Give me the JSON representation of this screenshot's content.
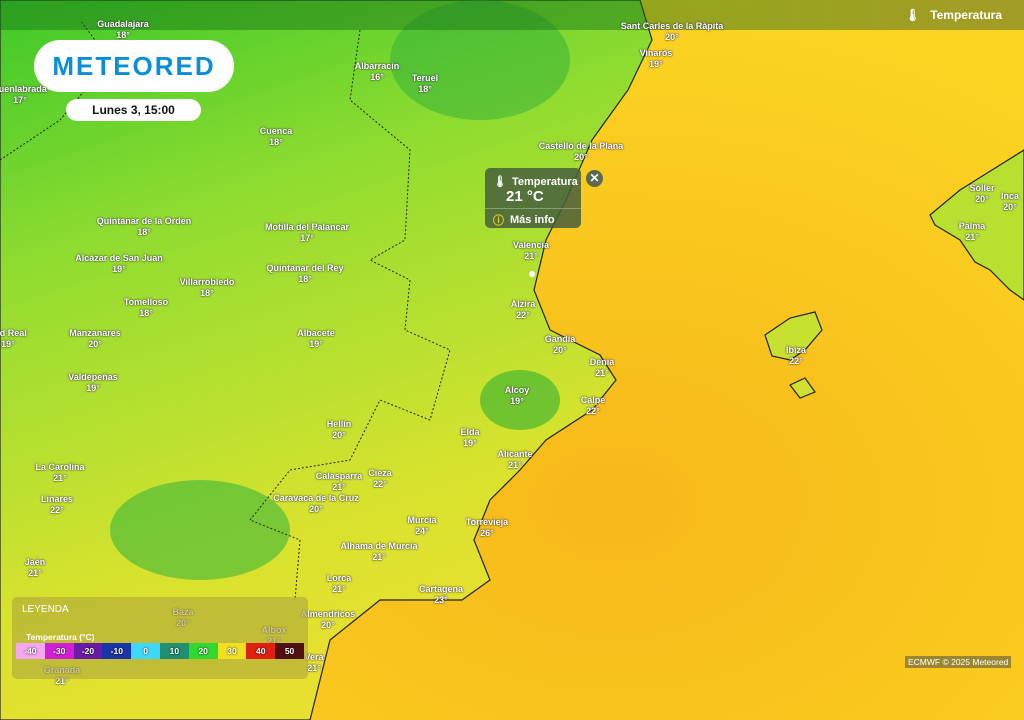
{
  "header": {
    "layer_label": "Temperatura",
    "layer_icon": "thermometer-icon"
  },
  "logo": {
    "text": "METEORED"
  },
  "date_label": "Lunes 3, 15:00",
  "popup": {
    "title": "Temperatura",
    "value": "21 °C",
    "more": "Más info",
    "close_icon": "close-icon",
    "info_icon": "info-icon"
  },
  "legend": {
    "title": "LEYENDA",
    "subtitle": "Temperatura (°C)",
    "ticks": [
      "-40",
      "-30",
      "-20",
      "-10",
      "0",
      "10",
      "20",
      "30",
      "40",
      "50"
    ],
    "colors": [
      "#f5a6f0",
      "#d11fd6",
      "#6a1ca8",
      "#1a35a8",
      "#40d8f8",
      "#209070",
      "#30d830",
      "#f0e020",
      "#e02010",
      "#501010"
    ]
  },
  "credit": "ECMWF © 2025 Meteored",
  "colors": {
    "sea": "#f6c21c",
    "land_green": "#4ccc2c",
    "land_yellow": "#d8e030",
    "brand": "#0a8fd6"
  },
  "cities": [
    {
      "name": "Guadalajara",
      "temp": "18°"
    },
    {
      "name": "Albarracín",
      "temp": "16°"
    },
    {
      "name": "Teruel",
      "temp": "18°"
    },
    {
      "name": "Sant Carles de la Ràpita",
      "temp": "20°"
    },
    {
      "name": "Vinaròs",
      "temp": "19°"
    },
    {
      "name": "Fuenlabrada",
      "temp": "17°"
    },
    {
      "name": "Cuenca",
      "temp": "18°"
    },
    {
      "name": "Castelló de la Plana",
      "temp": "20°"
    },
    {
      "name": "Quintanar de la Orden",
      "temp": "18°"
    },
    {
      "name": "Motilla del Palancar",
      "temp": "17°"
    },
    {
      "name": "Valencia",
      "temp": "21°"
    },
    {
      "name": "Alcázar de San Juan",
      "temp": "19°"
    },
    {
      "name": "Quintanar del Rey",
      "temp": "18°"
    },
    {
      "name": "Villarrobledo",
      "temp": "18°"
    },
    {
      "name": "Tomelloso",
      "temp": "18°"
    },
    {
      "name": "Alzira",
      "temp": "22°"
    },
    {
      "name": "Manzanares",
      "temp": "20°"
    },
    {
      "name": "Albacete",
      "temp": "19°"
    },
    {
      "name": "Gandia",
      "temp": "20°"
    },
    {
      "name": "Dénia",
      "temp": "21°"
    },
    {
      "name": "dad Real",
      "temp": "19°"
    },
    {
      "name": "Valdepeñas",
      "temp": "19°"
    },
    {
      "name": "Alcoy",
      "temp": "19°"
    },
    {
      "name": "Calpe",
      "temp": "22°"
    },
    {
      "name": "Hellín",
      "temp": "20°"
    },
    {
      "name": "Elda",
      "temp": "19°"
    },
    {
      "name": "Alicante",
      "temp": "21°"
    },
    {
      "name": "La Carolina",
      "temp": "21°"
    },
    {
      "name": "Calasparra",
      "temp": "21°"
    },
    {
      "name": "Cieza",
      "temp": "22°"
    },
    {
      "name": "Linares",
      "temp": "22°"
    },
    {
      "name": "Caravaca de la Cruz",
      "temp": "20°"
    },
    {
      "name": "Murcia",
      "temp": "24°"
    },
    {
      "name": "Torrevieja",
      "temp": "26°"
    },
    {
      "name": "Alhama de Murcia",
      "temp": "21°"
    },
    {
      "name": "Jaén",
      "temp": "21°"
    },
    {
      "name": "Lorca",
      "temp": "21°"
    },
    {
      "name": "Cartagena",
      "temp": "23°"
    },
    {
      "name": "Almendricos",
      "temp": "20°"
    },
    {
      "name": "Baza",
      "temp": "20°"
    },
    {
      "name": "Albox",
      "temp": "21°"
    },
    {
      "name": "Vera",
      "temp": "21°"
    },
    {
      "name": "Granada",
      "temp": "21°"
    },
    {
      "name": "Sóller",
      "temp": "20°"
    },
    {
      "name": "Inca",
      "temp": "20°"
    },
    {
      "name": "Palma",
      "temp": "21°"
    },
    {
      "name": "Ibiza",
      "temp": "22°"
    }
  ]
}
